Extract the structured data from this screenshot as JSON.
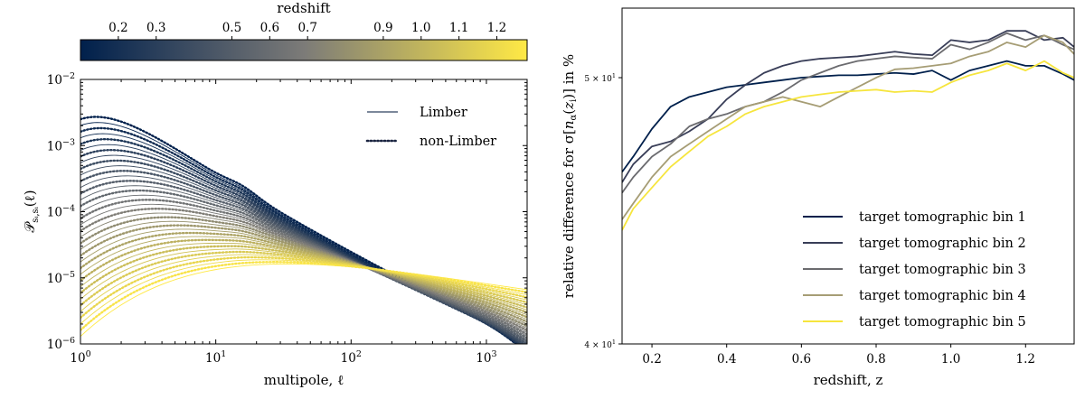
{
  "chart_data": [
    {
      "type": "line",
      "title": "",
      "xlabel": "multipole, ℓ",
      "ylabel": "P_{si,si}(ℓ)",
      "xscale": "log",
      "yscale": "log",
      "xlim": [
        1,
        2000
      ],
      "ylim": [
        1e-06,
        0.01
      ],
      "x_ticks": [
        1,
        10,
        100,
        1000
      ],
      "x_tick_labels": [
        {
          "base": "10",
          "exp": "0"
        },
        {
          "base": "10",
          "exp": "1"
        },
        {
          "base": "10",
          "exp": "2"
        },
        {
          "base": "10",
          "exp": "3"
        }
      ],
      "y_ticks": [
        1e-06,
        1e-05,
        0.0001,
        0.001,
        0.01
      ],
      "y_tick_labels": [
        {
          "base": "10",
          "exp": "−6"
        },
        {
          "base": "10",
          "exp": "−5"
        },
        {
          "base": "10",
          "exp": "−4"
        },
        {
          "base": "10",
          "exp": "−3"
        },
        {
          "base": "10",
          "exp": "−2"
        }
      ],
      "legend": {
        "placement": "top-right",
        "entries": [
          {
            "label": "Limber",
            "style": "solid"
          },
          {
            "label": "non-Limber",
            "style": "dotted"
          }
        ]
      },
      "colorbar": {
        "label": "redshift",
        "placement": "top",
        "range": [
          0.1,
          1.28
        ],
        "ticks": [
          0.2,
          0.3,
          0.5,
          0.6,
          0.7,
          0.9,
          1.0,
          1.1,
          1.2
        ],
        "tick_labels": [
          "0.2",
          "0.3",
          "0.5",
          "0.6",
          "0.7",
          "0.9",
          "1.0",
          "1.1",
          "1.2"
        ],
        "colormap_stops": [
          "#00204c",
          "#7c7b78",
          "#ffe945"
        ]
      },
      "series_model": {
        "description": "Family of angular power spectra, one per redshift slice; amplitude decreases with redshift",
        "n_curves": 36,
        "z_min": 0.12,
        "z_max": 1.3,
        "amplitude_at_l1": {
          "z_min": 0.0025,
          "z_max": 1.3e-06
        },
        "amplitude_at_l2000": 1e-06,
        "peak_ell": {
          "z_min": 3,
          "z_max": 40
        },
        "dotted_curves_every": 2
      }
    },
    {
      "type": "line",
      "title": "",
      "xlabel": "redshift, z",
      "ylabel": "relative difference for σ[nα(zi)] in %",
      "yscale": "log",
      "xlim": [
        0.12,
        1.33
      ],
      "ylim": [
        40,
        53
      ],
      "x_ticks": [
        0.2,
        0.4,
        0.6,
        0.8,
        1.0,
        1.2
      ],
      "x_tick_labels": [
        "0.2",
        "0.4",
        "0.6",
        "0.8",
        "1.0",
        "1.2"
      ],
      "y_ticks": [
        40,
        50
      ],
      "y_tick_labels": [
        {
          "base": "4 × 10",
          "exp": "1"
        },
        {
          "base": "5 × 10",
          "exp": "1"
        }
      ],
      "x": [
        0.12,
        0.15,
        0.2,
        0.25,
        0.3,
        0.35,
        0.4,
        0.45,
        0.5,
        0.55,
        0.6,
        0.65,
        0.7,
        0.75,
        0.8,
        0.85,
        0.9,
        0.95,
        1.0,
        1.05,
        1.1,
        1.15,
        1.2,
        1.25,
        1.3,
        1.33
      ],
      "series": [
        {
          "name": "target tomographic bin 1",
          "color": "#00204c",
          "values": [
            46.2,
            46.8,
            47.9,
            48.8,
            49.2,
            49.4,
            49.6,
            49.7,
            49.8,
            49.9,
            50.0,
            50.05,
            50.1,
            50.1,
            50.15,
            50.2,
            50.15,
            50.3,
            49.9,
            50.3,
            50.5,
            50.7,
            50.5,
            50.5,
            50.15,
            49.9
          ]
        },
        {
          "name": "target tomographic bin 2",
          "color": "#393e58",
          "values": [
            45.8,
            46.5,
            47.2,
            47.4,
            47.8,
            48.3,
            49.1,
            49.7,
            50.2,
            50.5,
            50.7,
            50.8,
            50.85,
            50.9,
            51.0,
            51.1,
            51.0,
            50.95,
            51.6,
            51.5,
            51.6,
            52.0,
            52.0,
            51.6,
            51.7,
            51.3
          ]
        },
        {
          "name": "target tomographic bin 3",
          "color": "#6b6b6f",
          "values": [
            45.4,
            46.0,
            46.8,
            47.3,
            48.0,
            48.3,
            48.5,
            48.8,
            49.0,
            49.4,
            49.9,
            50.2,
            50.5,
            50.7,
            50.8,
            50.9,
            50.85,
            50.8,
            51.4,
            51.2,
            51.5,
            51.9,
            51.6,
            51.8,
            51.4,
            51.2
          ]
        },
        {
          "name": "target tomographic bin 4",
          "color": "#a69d75",
          "values": [
            44.4,
            45.0,
            46.0,
            46.8,
            47.3,
            47.8,
            48.3,
            48.8,
            49.0,
            49.2,
            49.0,
            48.8,
            49.2,
            49.6,
            50.0,
            50.35,
            50.4,
            50.5,
            50.6,
            50.9,
            51.1,
            51.5,
            51.3,
            51.8,
            51.5,
            51.0
          ]
        },
        {
          "name": "target tomographic bin 5",
          "color": "#f6e53d",
          "values": [
            44.0,
            44.8,
            45.6,
            46.4,
            47.0,
            47.6,
            48.0,
            48.5,
            48.8,
            49.0,
            49.2,
            49.3,
            49.4,
            49.45,
            49.5,
            49.4,
            49.45,
            49.4,
            49.8,
            50.1,
            50.3,
            50.6,
            50.3,
            50.7,
            50.2,
            50.0
          ]
        }
      ],
      "legend": {
        "placement": "lower-right"
      }
    }
  ]
}
